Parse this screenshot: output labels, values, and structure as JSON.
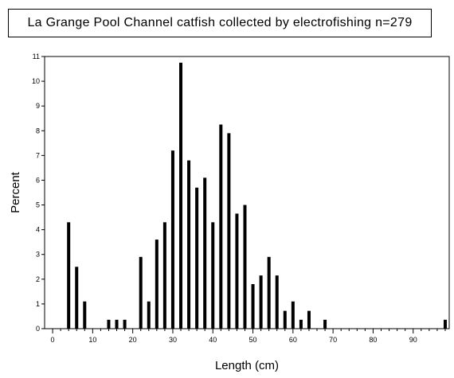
{
  "chart_data": {
    "type": "bar",
    "title": "La Grange Pool Channel catfish collected by electrofishing n=279",
    "xlabel": "Length (cm)",
    "ylabel": "Percent",
    "xlim": [
      -2,
      99
    ],
    "ylim": [
      0,
      11
    ],
    "xticks": [
      0,
      10,
      20,
      30,
      40,
      50,
      60,
      70,
      80,
      90
    ],
    "yticks": [
      0,
      1,
      2,
      3,
      4,
      5,
      6,
      7,
      8,
      9,
      10,
      11
    ],
    "x": [
      4,
      6,
      8,
      14,
      16,
      18,
      22,
      24,
      26,
      28,
      30,
      32,
      34,
      36,
      38,
      40,
      42,
      44,
      46,
      48,
      50,
      52,
      54,
      56,
      58,
      60,
      62,
      64,
      68,
      98
    ],
    "values": [
      4.3,
      2.5,
      1.1,
      0.36,
      0.36,
      0.36,
      2.9,
      1.1,
      3.6,
      4.3,
      7.2,
      10.75,
      6.8,
      5.7,
      6.1,
      4.3,
      8.25,
      7.9,
      4.65,
      5.0,
      1.8,
      2.15,
      2.9,
      2.15,
      0.72,
      1.1,
      0.36,
      0.72,
      0.36,
      0.36
    ],
    "color": "#000000",
    "grid": false,
    "legend": "none"
  }
}
